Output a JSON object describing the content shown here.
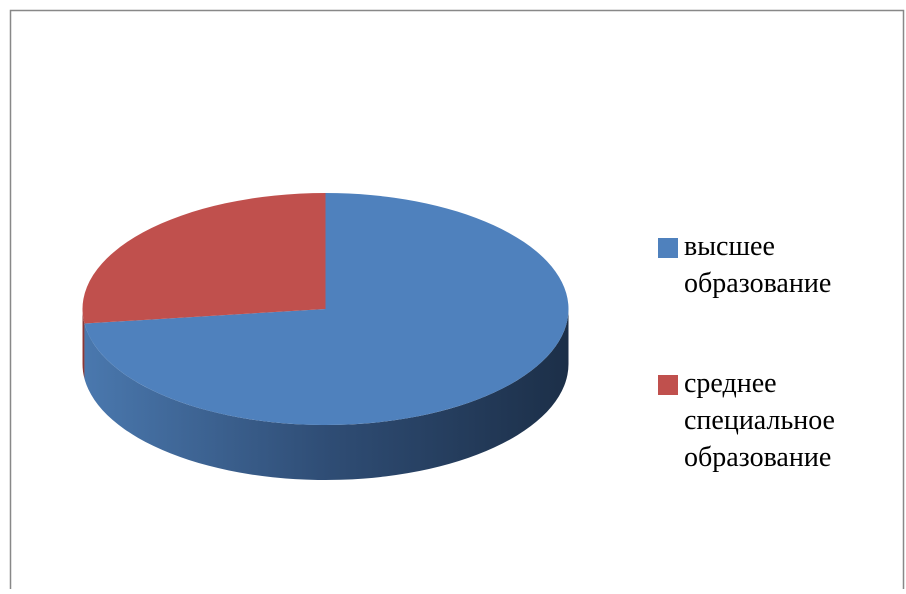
{
  "chart_data": {
    "type": "pie",
    "categories": [
      "высшее образование",
      "среднее специальное образование"
    ],
    "values": [
      73,
      27
    ],
    "colors": [
      "#4f81bd",
      "#c0504d"
    ],
    "legend": "right"
  }
}
